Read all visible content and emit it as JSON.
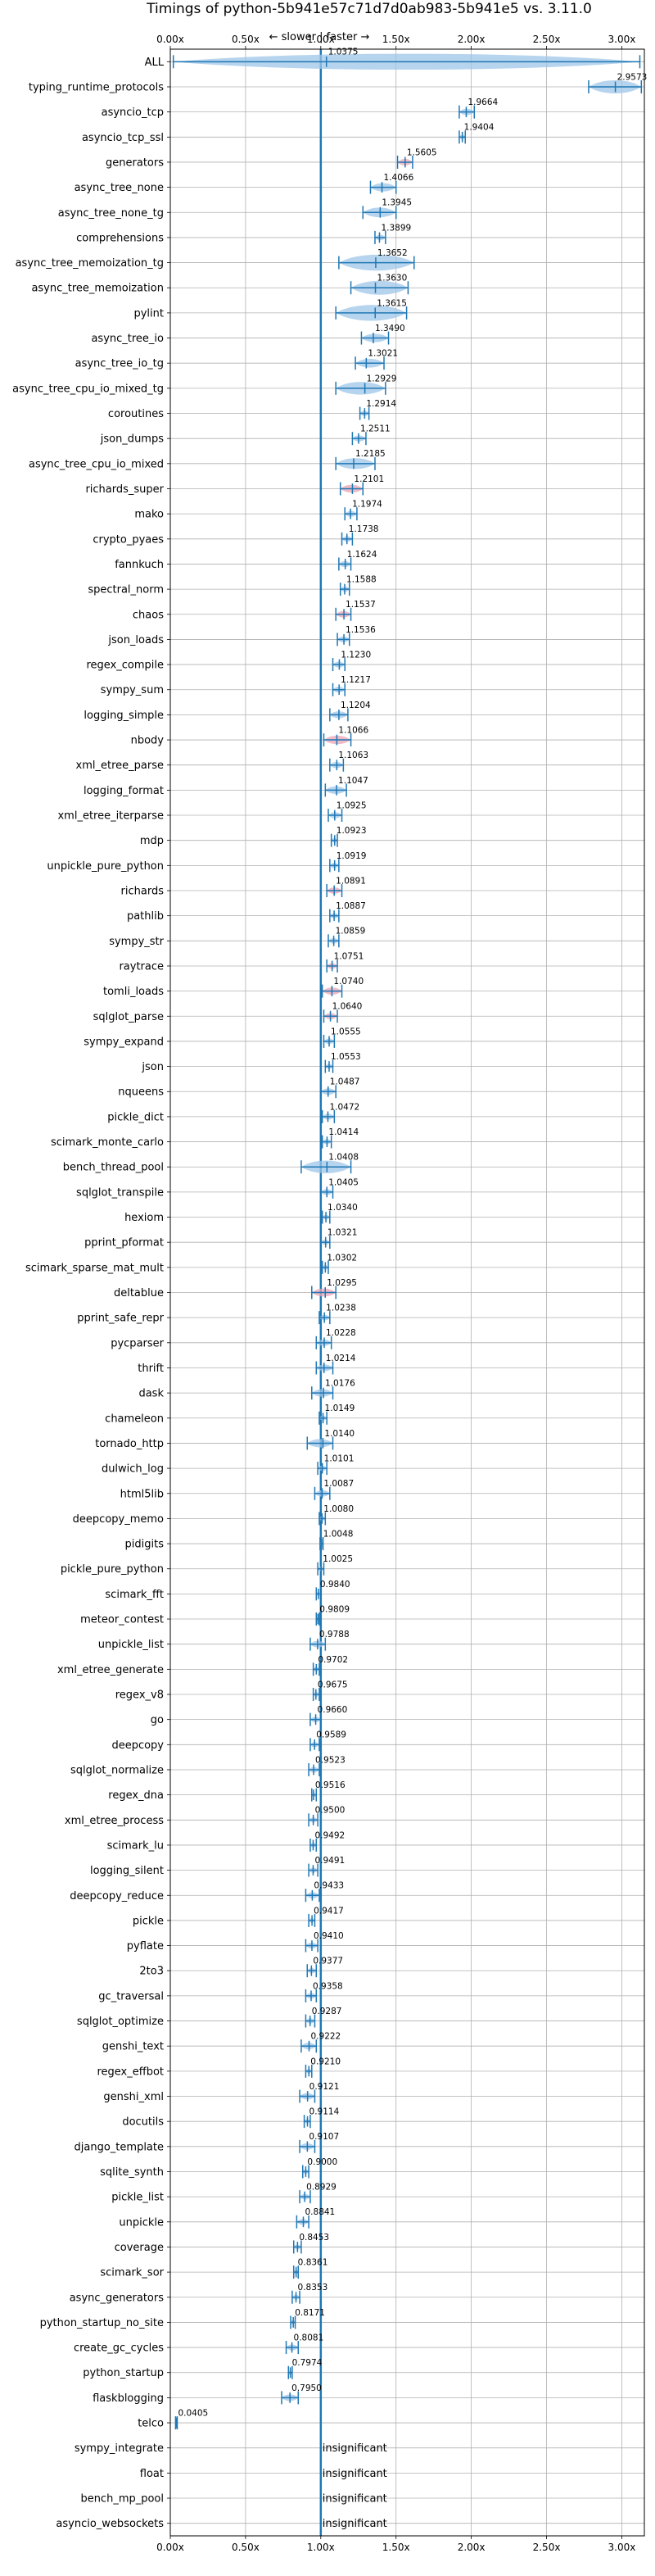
{
  "chart_data": {
    "type": "violin",
    "title": "Timings of python-5b941e57c71d7d0ab983-5b941e5 vs. 3.11.0",
    "subtitle": "← slower | faster →",
    "xlim": [
      0,
      3.15
    ],
    "xticks": [
      0.0,
      0.5,
      1.0,
      1.5,
      2.0,
      2.5,
      3.0
    ],
    "xtick_labels": [
      "0.00x",
      "0.50x",
      "1.00x",
      "1.50x",
      "2.00x",
      "2.50x",
      "3.00x"
    ],
    "reference_line": 1.0,
    "grid": true,
    "insignificant_label": "insignificant",
    "benchmarks": [
      {
        "name": "ALL",
        "value": 1.0375,
        "label": "1.0375",
        "min": 0.02,
        "max": 3.12
      },
      {
        "name": "typing_runtime_protocols",
        "value": 2.9573,
        "label": "2.9573",
        "min": 2.78,
        "max": 3.13
      },
      {
        "name": "asyncio_tcp",
        "value": 1.9664,
        "label": "1.9664",
        "min": 1.92,
        "max": 2.02
      },
      {
        "name": "asyncio_tcp_ssl",
        "value": 1.9404,
        "label": "1.9404",
        "min": 1.92,
        "max": 1.96
      },
      {
        "name": "generators",
        "value": 1.5605,
        "label": "1.5605",
        "min": 1.51,
        "max": 1.61,
        "color": "pink"
      },
      {
        "name": "async_tree_none",
        "value": 1.4066,
        "label": "1.4066",
        "min": 1.33,
        "max": 1.5
      },
      {
        "name": "async_tree_none_tg",
        "value": 1.3945,
        "label": "1.3945",
        "min": 1.28,
        "max": 1.5
      },
      {
        "name": "comprehensions",
        "value": 1.3899,
        "label": "1.3899",
        "min": 1.36,
        "max": 1.43
      },
      {
        "name": "async_tree_memoization_tg",
        "value": 1.3652,
        "label": "1.3652",
        "min": 1.12,
        "max": 1.62
      },
      {
        "name": "async_tree_memoization",
        "value": 1.363,
        "label": "1.3630",
        "min": 1.2,
        "max": 1.58
      },
      {
        "name": "pylint",
        "value": 1.3615,
        "label": "1.3615",
        "min": 1.1,
        "max": 1.57
      },
      {
        "name": "async_tree_io",
        "value": 1.349,
        "label": "1.3490",
        "min": 1.27,
        "max": 1.45
      },
      {
        "name": "async_tree_io_tg",
        "value": 1.3021,
        "label": "1.3021",
        "min": 1.23,
        "max": 1.42
      },
      {
        "name": "async_tree_cpu_io_mixed_tg",
        "value": 1.2929,
        "label": "1.2929",
        "min": 1.1,
        "max": 1.43
      },
      {
        "name": "coroutines",
        "value": 1.2914,
        "label": "1.2914",
        "min": 1.26,
        "max": 1.32
      },
      {
        "name": "json_dumps",
        "value": 1.2511,
        "label": "1.2511",
        "min": 1.21,
        "max": 1.3
      },
      {
        "name": "async_tree_cpu_io_mixed",
        "value": 1.2185,
        "label": "1.2185",
        "min": 1.1,
        "max": 1.36
      },
      {
        "name": "richards_super",
        "value": 1.2101,
        "label": "1.2101",
        "min": 1.13,
        "max": 1.28,
        "color": "pink"
      },
      {
        "name": "mako",
        "value": 1.1974,
        "label": "1.1974",
        "min": 1.16,
        "max": 1.24
      },
      {
        "name": "crypto_pyaes",
        "value": 1.1738,
        "label": "1.1738",
        "min": 1.14,
        "max": 1.21
      },
      {
        "name": "fannkuch",
        "value": 1.1624,
        "label": "1.1624",
        "min": 1.12,
        "max": 1.2
      },
      {
        "name": "spectral_norm",
        "value": 1.1588,
        "label": "1.1588",
        "min": 1.13,
        "max": 1.19
      },
      {
        "name": "chaos",
        "value": 1.1537,
        "label": "1.1537",
        "min": 1.1,
        "max": 1.2,
        "color": "pink"
      },
      {
        "name": "json_loads",
        "value": 1.1536,
        "label": "1.1536",
        "min": 1.11,
        "max": 1.19
      },
      {
        "name": "regex_compile",
        "value": 1.123,
        "label": "1.1230",
        "min": 1.08,
        "max": 1.16
      },
      {
        "name": "sympy_sum",
        "value": 1.1217,
        "label": "1.1217",
        "min": 1.08,
        "max": 1.16
      },
      {
        "name": "logging_simple",
        "value": 1.1204,
        "label": "1.1204",
        "min": 1.06,
        "max": 1.18
      },
      {
        "name": "nbody",
        "value": 1.1066,
        "label": "1.1066",
        "min": 1.02,
        "max": 1.2,
        "color": "pink"
      },
      {
        "name": "xml_etree_parse",
        "value": 1.1063,
        "label": "1.1063",
        "min": 1.06,
        "max": 1.15
      },
      {
        "name": "logging_format",
        "value": 1.1047,
        "label": "1.1047",
        "min": 1.03,
        "max": 1.17
      },
      {
        "name": "xml_etree_iterparse",
        "value": 1.0925,
        "label": "1.0925",
        "min": 1.05,
        "max": 1.14
      },
      {
        "name": "mdp",
        "value": 1.0923,
        "label": "1.0923",
        "min": 1.07,
        "max": 1.11
      },
      {
        "name": "unpickle_pure_python",
        "value": 1.0919,
        "label": "1.0919",
        "min": 1.06,
        "max": 1.12
      },
      {
        "name": "richards",
        "value": 1.0891,
        "label": "1.0891",
        "min": 1.04,
        "max": 1.14,
        "color": "pink"
      },
      {
        "name": "pathlib",
        "value": 1.0887,
        "label": "1.0887",
        "min": 1.06,
        "max": 1.12
      },
      {
        "name": "sympy_str",
        "value": 1.0859,
        "label": "1.0859",
        "min": 1.05,
        "max": 1.12
      },
      {
        "name": "raytrace",
        "value": 1.0751,
        "label": "1.0751",
        "min": 1.04,
        "max": 1.11,
        "color": "pink"
      },
      {
        "name": "tomli_loads",
        "value": 1.074,
        "label": "1.0740",
        "min": 1.01,
        "max": 1.14,
        "color": "pink"
      },
      {
        "name": "sqlglot_parse",
        "value": 1.064,
        "label": "1.0640",
        "min": 1.02,
        "max": 1.11,
        "color": "pink"
      },
      {
        "name": "sympy_expand",
        "value": 1.0555,
        "label": "1.0555",
        "min": 1.02,
        "max": 1.09
      },
      {
        "name": "json",
        "value": 1.0553,
        "label": "1.0553",
        "min": 1.03,
        "max": 1.08
      },
      {
        "name": "nqueens",
        "value": 1.0487,
        "label": "1.0487",
        "min": 1.0,
        "max": 1.1
      },
      {
        "name": "pickle_dict",
        "value": 1.0472,
        "label": "1.0472",
        "min": 1.01,
        "max": 1.09
      },
      {
        "name": "scimark_monte_carlo",
        "value": 1.0414,
        "label": "1.0414",
        "min": 1.01,
        "max": 1.07
      },
      {
        "name": "bench_thread_pool",
        "value": 1.0408,
        "label": "1.0408",
        "min": 0.87,
        "max": 1.2
      },
      {
        "name": "sqlglot_transpile",
        "value": 1.0405,
        "label": "1.0405",
        "min": 1.0,
        "max": 1.08
      },
      {
        "name": "hexiom",
        "value": 1.034,
        "label": "1.0340",
        "min": 1.01,
        "max": 1.06
      },
      {
        "name": "pprint_pformat",
        "value": 1.0321,
        "label": "1.0321",
        "min": 1.0,
        "max": 1.06
      },
      {
        "name": "scimark_sparse_mat_mult",
        "value": 1.0302,
        "label": "1.0302",
        "min": 1.01,
        "max": 1.05
      },
      {
        "name": "deltablue",
        "value": 1.0295,
        "label": "1.0295",
        "min": 0.94,
        "max": 1.1,
        "color": "pink"
      },
      {
        "name": "pprint_safe_repr",
        "value": 1.0238,
        "label": "1.0238",
        "min": 0.99,
        "max": 1.06
      },
      {
        "name": "pycparser",
        "value": 1.0228,
        "label": "1.0228",
        "min": 0.97,
        "max": 1.07
      },
      {
        "name": "thrift",
        "value": 1.0214,
        "label": "1.0214",
        "min": 0.97,
        "max": 1.08
      },
      {
        "name": "dask",
        "value": 1.0176,
        "label": "1.0176",
        "min": 0.94,
        "max": 1.08
      },
      {
        "name": "chameleon",
        "value": 1.0149,
        "label": "1.0149",
        "min": 0.99,
        "max": 1.04
      },
      {
        "name": "tornado_http",
        "value": 1.014,
        "label": "1.0140",
        "min": 0.91,
        "max": 1.08
      },
      {
        "name": "dulwich_log",
        "value": 1.0101,
        "label": "1.0101",
        "min": 0.98,
        "max": 1.04
      },
      {
        "name": "html5lib",
        "value": 1.0087,
        "label": "1.0087",
        "min": 0.96,
        "max": 1.06
      },
      {
        "name": "deepcopy_memo",
        "value": 1.008,
        "label": "1.0080",
        "min": 0.99,
        "max": 1.03
      },
      {
        "name": "pidigits",
        "value": 1.0048,
        "label": "1.0048",
        "min": 0.995,
        "max": 1.015
      },
      {
        "name": "pickle_pure_python",
        "value": 1.0025,
        "label": "1.0025",
        "min": 0.98,
        "max": 1.02
      },
      {
        "name": "scimark_fft",
        "value": 0.984,
        "label": "0.9840",
        "min": 0.97,
        "max": 1.0
      },
      {
        "name": "meteor_contest",
        "value": 0.9809,
        "label": "0.9809",
        "min": 0.97,
        "max": 0.99
      },
      {
        "name": "unpickle_list",
        "value": 0.9788,
        "label": "0.9788",
        "min": 0.93,
        "max": 1.03
      },
      {
        "name": "xml_etree_generate",
        "value": 0.9702,
        "label": "0.9702",
        "min": 0.95,
        "max": 0.99
      },
      {
        "name": "regex_v8",
        "value": 0.9675,
        "label": "0.9675",
        "min": 0.95,
        "max": 0.99
      },
      {
        "name": "go",
        "value": 0.966,
        "label": "0.9660",
        "min": 0.93,
        "max": 1.0
      },
      {
        "name": "deepcopy",
        "value": 0.9589,
        "label": "0.9589",
        "min": 0.93,
        "max": 0.99
      },
      {
        "name": "sqlglot_normalize",
        "value": 0.9523,
        "label": "0.9523",
        "min": 0.92,
        "max": 0.99
      },
      {
        "name": "regex_dna",
        "value": 0.9516,
        "label": "0.9516",
        "min": 0.94,
        "max": 0.97
      },
      {
        "name": "xml_etree_process",
        "value": 0.95,
        "label": "0.9500",
        "min": 0.92,
        "max": 0.98
      },
      {
        "name": "scimark_lu",
        "value": 0.9492,
        "label": "0.9492",
        "min": 0.93,
        "max": 0.97
      },
      {
        "name": "logging_silent",
        "value": 0.9491,
        "label": "0.9491",
        "min": 0.92,
        "max": 0.98
      },
      {
        "name": "deepcopy_reduce",
        "value": 0.9433,
        "label": "0.9433",
        "min": 0.9,
        "max": 0.99
      },
      {
        "name": "pickle",
        "value": 0.9417,
        "label": "0.9417",
        "min": 0.92,
        "max": 0.96
      },
      {
        "name": "pyflate",
        "value": 0.941,
        "label": "0.9410",
        "min": 0.9,
        "max": 0.98
      },
      {
        "name": "2to3",
        "value": 0.9377,
        "label": "0.9377",
        "min": 0.91,
        "max": 0.97
      },
      {
        "name": "gc_traversal",
        "value": 0.9358,
        "label": "0.9358",
        "min": 0.9,
        "max": 0.97
      },
      {
        "name": "sqlglot_optimize",
        "value": 0.9287,
        "label": "0.9287",
        "min": 0.9,
        "max": 0.96
      },
      {
        "name": "genshi_text",
        "value": 0.9222,
        "label": "0.9222",
        "min": 0.87,
        "max": 0.97
      },
      {
        "name": "regex_effbot",
        "value": 0.921,
        "label": "0.9210",
        "min": 0.9,
        "max": 0.94
      },
      {
        "name": "genshi_xml",
        "value": 0.9121,
        "label": "0.9121",
        "min": 0.86,
        "max": 0.96
      },
      {
        "name": "docutils",
        "value": 0.9114,
        "label": "0.9114",
        "min": 0.89,
        "max": 0.93
      },
      {
        "name": "django_template",
        "value": 0.9107,
        "label": "0.9107",
        "min": 0.86,
        "max": 0.96
      },
      {
        "name": "sqlite_synth",
        "value": 0.9,
        "label": "0.9000",
        "min": 0.88,
        "max": 0.92
      },
      {
        "name": "pickle_list",
        "value": 0.8929,
        "label": "0.8929",
        "min": 0.86,
        "max": 0.93
      },
      {
        "name": "unpickle",
        "value": 0.8841,
        "label": "0.8841",
        "min": 0.84,
        "max": 0.92
      },
      {
        "name": "coverage",
        "value": 0.8453,
        "label": "0.8453",
        "min": 0.82,
        "max": 0.87
      },
      {
        "name": "scimark_sor",
        "value": 0.8361,
        "label": "0.8361",
        "min": 0.82,
        "max": 0.85
      },
      {
        "name": "async_generators",
        "value": 0.8353,
        "label": "0.8353",
        "min": 0.81,
        "max": 0.86
      },
      {
        "name": "python_startup_no_site",
        "value": 0.8171,
        "label": "0.8171",
        "min": 0.8,
        "max": 0.83
      },
      {
        "name": "create_gc_cycles",
        "value": 0.8081,
        "label": "0.8081",
        "min": 0.77,
        "max": 0.85
      },
      {
        "name": "python_startup",
        "value": 0.7974,
        "label": "0.7974",
        "min": 0.785,
        "max": 0.81
      },
      {
        "name": "flaskblogging",
        "value": 0.795,
        "label": "0.7950",
        "min": 0.74,
        "max": 0.85
      },
      {
        "name": "telco",
        "value": 0.0405,
        "label": "0.0405",
        "min": 0.035,
        "max": 0.046
      },
      {
        "name": "sympy_integrate",
        "insignificant": true
      },
      {
        "name": "float",
        "insignificant": true
      },
      {
        "name": "bench_mp_pool",
        "insignificant": true
      },
      {
        "name": "asyncio_websockets",
        "insignificant": true
      }
    ]
  }
}
